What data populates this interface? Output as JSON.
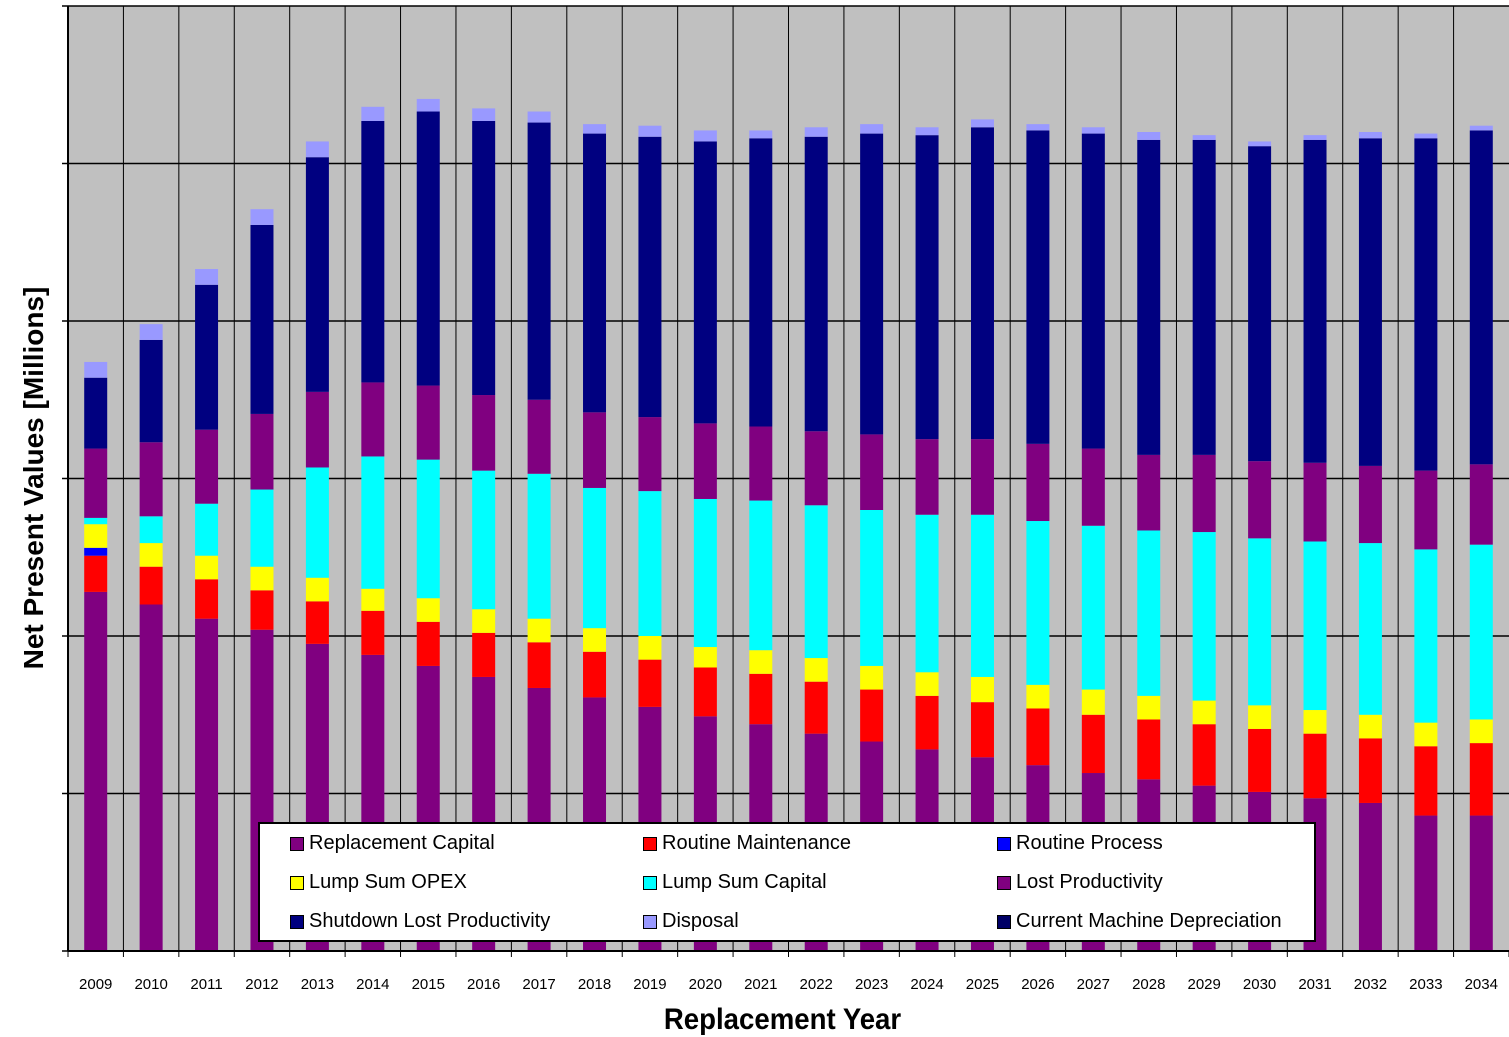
{
  "chart_data": {
    "type": "bar",
    "stacked": true,
    "title": "",
    "xlabel": "Replacement Year",
    "ylabel": "Net Present Values [Millions]",
    "ylim": [
      0,
      6
    ],
    "y_tick_labels_visible": false,
    "grid": true,
    "legend_position": "bottom-center, inside plot",
    "categories": [
      "2009",
      "2010",
      "2011",
      "2012",
      "2013",
      "2014",
      "2015",
      "2016",
      "2017",
      "2018",
      "2019",
      "2020",
      "2021",
      "2022",
      "2023",
      "2024",
      "2025",
      "2026",
      "2027",
      "2028",
      "2029",
      "2030",
      "2031",
      "2032",
      "2033",
      "2034"
    ],
    "series": [
      {
        "name": "Replacement Capital",
        "color": "#800080",
        "values": [
          2.28,
          2.2,
          2.11,
          2.04,
          1.95,
          1.88,
          1.81,
          1.74,
          1.67,
          1.61,
          1.55,
          1.49,
          1.44,
          1.38,
          1.33,
          1.28,
          1.23,
          1.18,
          1.13,
          1.09,
          1.05,
          1.01,
          0.97,
          0.94,
          0.86,
          0.86
        ]
      },
      {
        "name": "Routine Maintenance",
        "color": "#ff0000",
        "values": [
          0.23,
          0.24,
          0.25,
          0.25,
          0.27,
          0.28,
          0.28,
          0.28,
          0.29,
          0.29,
          0.3,
          0.31,
          0.32,
          0.33,
          0.33,
          0.34,
          0.35,
          0.36,
          0.37,
          0.38,
          0.39,
          0.4,
          0.41,
          0.41,
          0.44,
          0.46
        ]
      },
      {
        "name": "Routine Process",
        "color": "#0000ff",
        "values": [
          0.05,
          0,
          0,
          0,
          0,
          0,
          0,
          0,
          0,
          0,
          0,
          0,
          0,
          0,
          0,
          0,
          0,
          0,
          0,
          0,
          0,
          0,
          0,
          0,
          0,
          0
        ]
      },
      {
        "name": "Lump Sum OPEX",
        "color": "#ffff00",
        "values": [
          0.15,
          0.15,
          0.15,
          0.15,
          0.15,
          0.14,
          0.15,
          0.15,
          0.15,
          0.15,
          0.15,
          0.13,
          0.15,
          0.15,
          0.15,
          0.15,
          0.16,
          0.15,
          0.16,
          0.15,
          0.15,
          0.15,
          0.15,
          0.15,
          0.15,
          0.15
        ]
      },
      {
        "name": "Lump Sum Capital",
        "color": "#00ffff",
        "values": [
          0.04,
          0.17,
          0.33,
          0.49,
          0.7,
          0.84,
          0.88,
          0.88,
          0.92,
          0.89,
          0.92,
          0.94,
          0.95,
          0.97,
          0.99,
          1.0,
          1.03,
          1.04,
          1.04,
          1.05,
          1.07,
          1.06,
          1.07,
          1.09,
          1.1,
          1.11
        ]
      },
      {
        "name": "Lost Productivity",
        "color": "#800080",
        "values": [
          0.44,
          0.47,
          0.47,
          0.48,
          0.48,
          0.47,
          0.47,
          0.48,
          0.47,
          0.48,
          0.47,
          0.48,
          0.47,
          0.47,
          0.48,
          0.48,
          0.48,
          0.49,
          0.49,
          0.48,
          0.49,
          0.49,
          0.5,
          0.49,
          0.5,
          0.51
        ]
      },
      {
        "name": "Shutdown Lost Productivity",
        "color": "#000080",
        "values": [
          0.45,
          0.65,
          0.92,
          1.2,
          1.49,
          1.66,
          1.74,
          1.74,
          1.76,
          1.77,
          1.78,
          1.79,
          1.83,
          1.87,
          1.91,
          1.93,
          1.98,
          1.99,
          2.0,
          2.0,
          2.0,
          2.0,
          2.05,
          2.08,
          2.11,
          2.12
        ]
      },
      {
        "name": "Disposal",
        "color": "#9999ff",
        "values": [
          0.1,
          0.1,
          0.1,
          0.1,
          0.1,
          0.09,
          0.08,
          0.08,
          0.07,
          0.06,
          0.07,
          0.07,
          0.05,
          0.06,
          0.06,
          0.05,
          0.05,
          0.04,
          0.04,
          0.05,
          0.03,
          0.03,
          0.03,
          0.04,
          0.03,
          0.03
        ]
      },
      {
        "name": "Current Machine Depreciation",
        "color": "#000066",
        "values": [
          0,
          0,
          0,
          0,
          0,
          0,
          0,
          0,
          0,
          0,
          0,
          0,
          0,
          0,
          0,
          0,
          0,
          0,
          0,
          0,
          0,
          0,
          0,
          0,
          0,
          0
        ]
      }
    ],
    "colors": {
      "plot_background": "#c0c0c0",
      "gridline": "#000000",
      "page_background": "#ffffff"
    }
  }
}
